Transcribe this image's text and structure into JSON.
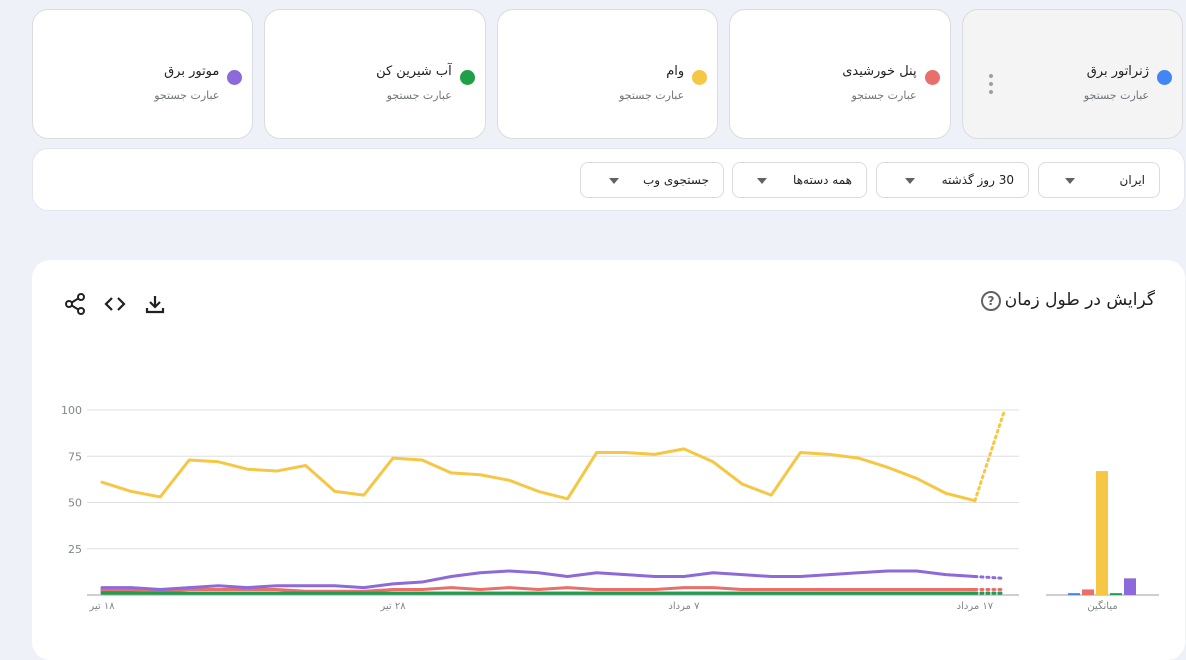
{
  "terms": [
    {
      "name": "ژنراتور برق",
      "type": "عبارت جستجو",
      "color": "#4285f4"
    },
    {
      "name": "پنل خورشیدی",
      "type": "عبارت جستجو",
      "color": "#ea6e6a"
    },
    {
      "name": "وام",
      "type": "عبارت جستجو",
      "color": "#f5c744"
    },
    {
      "name": "آب شیرین کن",
      "type": "عبارت جستجو",
      "color": "#1fa048"
    },
    {
      "name": "موتور برق",
      "type": "عبارت جستجو",
      "color": "#8c6ad9"
    }
  ],
  "filters": {
    "geo": "ایران",
    "time": "30 روز گذشته",
    "category": "همه دسته‌ها",
    "property": "جستجوی وب"
  },
  "chart": {
    "title": "گرایش در طول زمان",
    "help_icon": "?"
  },
  "chart_data": {
    "type": "line",
    "ylim": [
      0,
      100
    ],
    "yticks": [
      25,
      50,
      75,
      100
    ],
    "xtick_labels": [
      "۱۸ تیر",
      "۲۸ تیر",
      "۷ مرداد",
      "۱۷ مرداد"
    ],
    "xtick_index": [
      0,
      10,
      20,
      30
    ],
    "grid": true,
    "last_point_partial": true,
    "series": [
      {
        "name": "ژنراتور برق",
        "color": "#4285f4",
        "values": [
          2,
          2,
          1,
          1,
          1,
          1,
          1,
          1,
          1,
          1,
          1,
          1,
          1,
          1,
          1,
          1,
          1,
          1,
          1,
          1,
          1,
          1,
          1,
          1,
          1,
          1,
          1,
          1,
          1,
          1,
          1,
          1
        ]
      },
      {
        "name": "پنل خورشیدی",
        "color": "#ea6e6a",
        "values": [
          3,
          3,
          2,
          3,
          3,
          3,
          3,
          2,
          2,
          2,
          3,
          3,
          4,
          3,
          4,
          3,
          4,
          3,
          3,
          3,
          4,
          4,
          3,
          3,
          3,
          3,
          3,
          3,
          3,
          3,
          3,
          3
        ]
      },
      {
        "name": "وام",
        "color": "#f5c744",
        "values": [
          61,
          56,
          53,
          73,
          72,
          68,
          67,
          70,
          56,
          54,
          74,
          73,
          66,
          65,
          62,
          56,
          52,
          77,
          77,
          76,
          79,
          72,
          60,
          54,
          77,
          76,
          74,
          69,
          63,
          55,
          51,
          99
        ]
      },
      {
        "name": "آب شیرین کن",
        "color": "#1fa048",
        "values": [
          1,
          1,
          1,
          1,
          1,
          1,
          1,
          1,
          1,
          1,
          1,
          1,
          1,
          1,
          1,
          1,
          1,
          1,
          1,
          1,
          1,
          1,
          1,
          1,
          1,
          1,
          1,
          1,
          1,
          1,
          1,
          1
        ]
      },
      {
        "name": "موتور برق",
        "color": "#8c6ad9",
        "values": [
          4,
          4,
          3,
          4,
          5,
          4,
          5,
          5,
          5,
          4,
          6,
          7,
          10,
          12,
          13,
          12,
          10,
          12,
          11,
          10,
          10,
          12,
          11,
          10,
          10,
          11,
          12,
          13,
          13,
          11,
          10,
          9
        ]
      }
    ],
    "average": {
      "label": "میانگین",
      "values": [
        {
          "name": "ژنراتور برق",
          "color": "#4285f4",
          "value": 1
        },
        {
          "name": "پنل خورشیدی",
          "color": "#ea6e6a",
          "value": 3
        },
        {
          "name": "وام",
          "color": "#f5c744",
          "value": 67
        },
        {
          "name": "آب شیرین کن",
          "color": "#1fa048",
          "value": 1
        },
        {
          "name": "موتور برق",
          "color": "#8c6ad9",
          "value": 9
        }
      ]
    }
  }
}
